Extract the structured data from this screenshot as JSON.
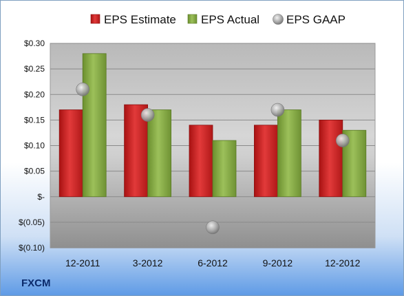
{
  "ticker": "FXCM",
  "colors": {
    "estimate": "#d42a2a",
    "actual": "#8ab04a",
    "gaap": "#b0b0b0"
  },
  "chart_data": {
    "type": "bar",
    "categories": [
      "12-2011",
      "3-2012",
      "6-2012",
      "9-2012",
      "12-2012"
    ],
    "series": [
      {
        "name": "EPS Estimate",
        "values": [
          0.17,
          0.18,
          0.14,
          0.14,
          0.15
        ]
      },
      {
        "name": "EPS Actual",
        "values": [
          0.28,
          0.17,
          0.11,
          0.17,
          0.13
        ]
      },
      {
        "name": "EPS GAAP",
        "type": "scatter",
        "values": [
          0.21,
          0.16,
          -0.06,
          0.17,
          0.11
        ]
      }
    ],
    "yticks": [
      {
        "value": 0.3,
        "label": "$0.30"
      },
      {
        "value": 0.25,
        "label": "$0.25"
      },
      {
        "value": 0.2,
        "label": "$0.20"
      },
      {
        "value": 0.15,
        "label": "$0.15"
      },
      {
        "value": 0.1,
        "label": "$0.10"
      },
      {
        "value": 0.05,
        "label": "$0.05"
      },
      {
        "value": 0.0,
        "label": "$-"
      },
      {
        "value": -0.05,
        "label": "$(0.05)"
      },
      {
        "value": -0.1,
        "label": "$(0.10)"
      }
    ],
    "ylim": [
      -0.1,
      0.3
    ],
    "grid": true,
    "legend": "top"
  }
}
